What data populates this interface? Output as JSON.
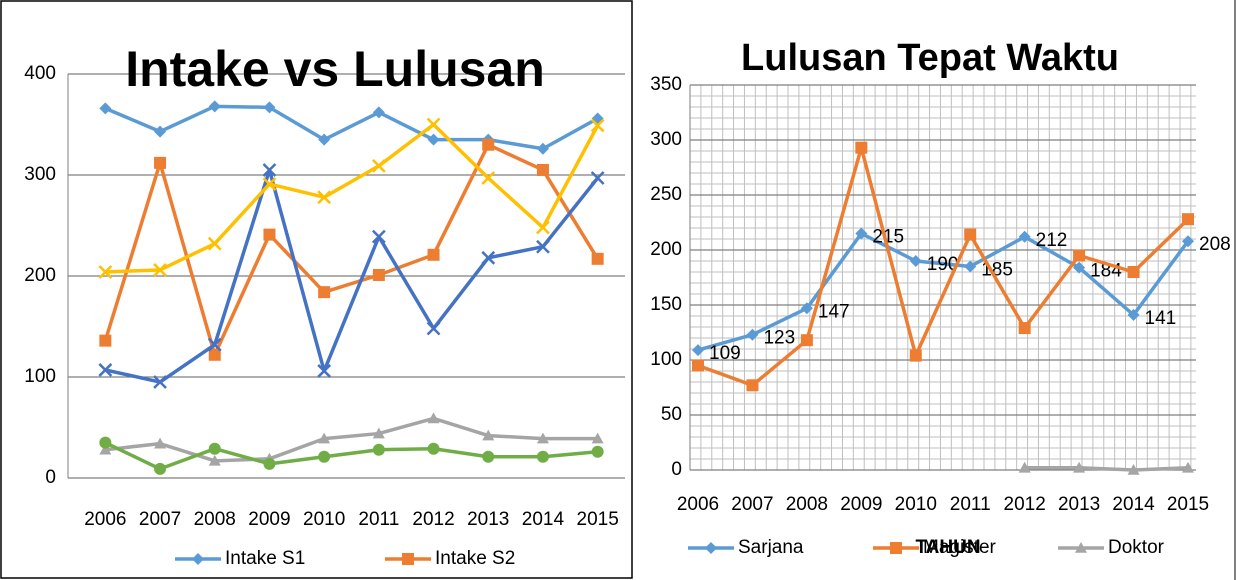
{
  "chart_data": [
    {
      "type": "line",
      "title": "Intake vs Lulusan",
      "categories": [
        "2006",
        "2007",
        "2008",
        "2009",
        "2010",
        "2011",
        "2012",
        "2013",
        "2014",
        "2015"
      ],
      "ylim": [
        0,
        400
      ],
      "yticks": [
        0,
        100,
        200,
        300,
        400
      ],
      "grid": true,
      "legend": "bottom",
      "series": [
        {
          "name": "Intake S1",
          "color": "#5b9bd5",
          "marker": "diamond",
          "values": [
            366,
            343,
            368,
            367,
            335,
            362,
            335,
            335,
            326,
            356
          ]
        },
        {
          "name": "Intake S2",
          "color": "#ed7d31",
          "marker": "square",
          "values": [
            136,
            312,
            122,
            241,
            184,
            201,
            221,
            330,
            305,
            217
          ]
        },
        {
          "color": "#4472c4",
          "marker": "x",
          "values": [
            107,
            95,
            132,
            305,
            106,
            239,
            148,
            218,
            229,
            297
          ]
        },
        {
          "color": "#ffc000",
          "marker": "x",
          "values": [
            204,
            206,
            232,
            291,
            278,
            309,
            350,
            297,
            248,
            349
          ]
        },
        {
          "color": "#a5a5a5",
          "marker": "triangle",
          "values": [
            28,
            34,
            17,
            19,
            39,
            44,
            59,
            42,
            39,
            39
          ]
        },
        {
          "color": "#70ad47",
          "marker": "circle",
          "values": [
            35,
            9,
            29,
            14,
            21,
            28,
            29,
            21,
            21,
            26
          ]
        }
      ]
    },
    {
      "type": "line",
      "title": "Lulusan Tepat Waktu",
      "x_label": "TAHUN",
      "categories": [
        "2006",
        "2007",
        "2008",
        "2009",
        "2010",
        "2011",
        "2012",
        "2013",
        "2014",
        "2015"
      ],
      "ylim": [
        0,
        350
      ],
      "yticks": [
        0,
        50,
        100,
        150,
        200,
        250,
        300,
        350
      ],
      "grid": true,
      "minor_grid": true,
      "legend": "bottom",
      "series": [
        {
          "name": "Sarjana",
          "color": "#5b9bd5",
          "marker": "diamond",
          "data_labels": true,
          "values": [
            109,
            123,
            147,
            215,
            190,
            185,
            212,
            184,
            141,
            208
          ]
        },
        {
          "name": "Magister",
          "color": "#ed7d31",
          "marker": "square",
          "values": [
            95,
            77,
            118,
            293,
            104,
            214,
            129,
            195,
            180,
            228
          ]
        },
        {
          "name": "Doktor",
          "color": "#a5a5a5",
          "marker": "triangle",
          "values": [
            null,
            null,
            null,
            null,
            null,
            null,
            2,
            2,
            0,
            2
          ]
        }
      ]
    }
  ]
}
